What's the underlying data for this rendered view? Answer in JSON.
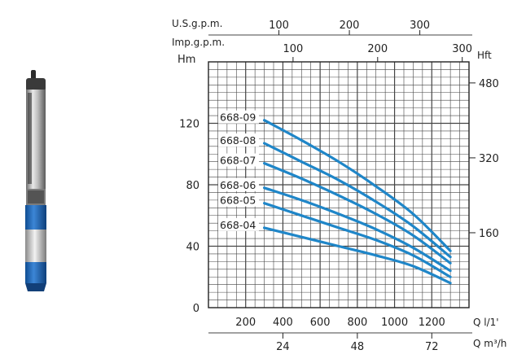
{
  "product_image": {
    "name": "submersible-pump"
  },
  "colors": {
    "curve": "#1f86c8",
    "pump_body": "#1a64b4",
    "grid": "#444444"
  },
  "chart_data": {
    "type": "line",
    "title": "",
    "x": {
      "label": "Q l/1'",
      "range": [
        0,
        1400
      ],
      "ticks": [
        200,
        400,
        600,
        800,
        1000,
        1200
      ]
    },
    "x2": {
      "label": "Q m³/h",
      "range": [
        0,
        84
      ],
      "ticks": [
        24,
        48,
        72
      ]
    },
    "x_top_us": {
      "label": "U.S.g.p.m.",
      "range": [
        0,
        369.8
      ],
      "ticks": [
        100,
        200,
        300
      ]
    },
    "x_top_imp": {
      "label": "Imp.g.p.m.",
      "range": [
        0,
        308
      ],
      "ticks": [
        100,
        200,
        300
      ]
    },
    "y": {
      "label": "Hm",
      "range": [
        0,
        160
      ],
      "ticks": [
        0,
        40,
        80,
        120
      ]
    },
    "y2": {
      "label": "Hft",
      "range": [
        0,
        525
      ],
      "ticks": [
        160,
        320,
        480
      ]
    },
    "grid": true,
    "series": [
      {
        "name": "668-04",
        "points": [
          [
            300,
            52
          ],
          [
            500,
            46
          ],
          [
            700,
            40
          ],
          [
            900,
            34
          ],
          [
            1100,
            27
          ],
          [
            1300,
            16
          ]
        ]
      },
      {
        "name": "668-05",
        "points": [
          [
            300,
            68
          ],
          [
            500,
            60
          ],
          [
            700,
            52
          ],
          [
            900,
            44
          ],
          [
            1100,
            34
          ],
          [
            1300,
            20
          ]
        ]
      },
      {
        "name": "668-06",
        "points": [
          [
            300,
            78
          ],
          [
            500,
            70
          ],
          [
            700,
            61
          ],
          [
            900,
            51
          ],
          [
            1100,
            39
          ],
          [
            1300,
            24
          ]
        ]
      },
      {
        "name": "668-07",
        "points": [
          [
            300,
            94
          ],
          [
            500,
            84
          ],
          [
            700,
            73
          ],
          [
            900,
            61
          ],
          [
            1100,
            47
          ],
          [
            1300,
            29
          ]
        ]
      },
      {
        "name": "668-08",
        "points": [
          [
            300,
            107
          ],
          [
            500,
            95
          ],
          [
            700,
            83
          ],
          [
            900,
            69
          ],
          [
            1100,
            53
          ],
          [
            1300,
            33
          ]
        ]
      },
      {
        "name": "668-09",
        "points": [
          [
            300,
            122
          ],
          [
            500,
            109
          ],
          [
            700,
            95
          ],
          [
            900,
            79
          ],
          [
            1100,
            61
          ],
          [
            1300,
            37
          ]
        ]
      }
    ]
  }
}
